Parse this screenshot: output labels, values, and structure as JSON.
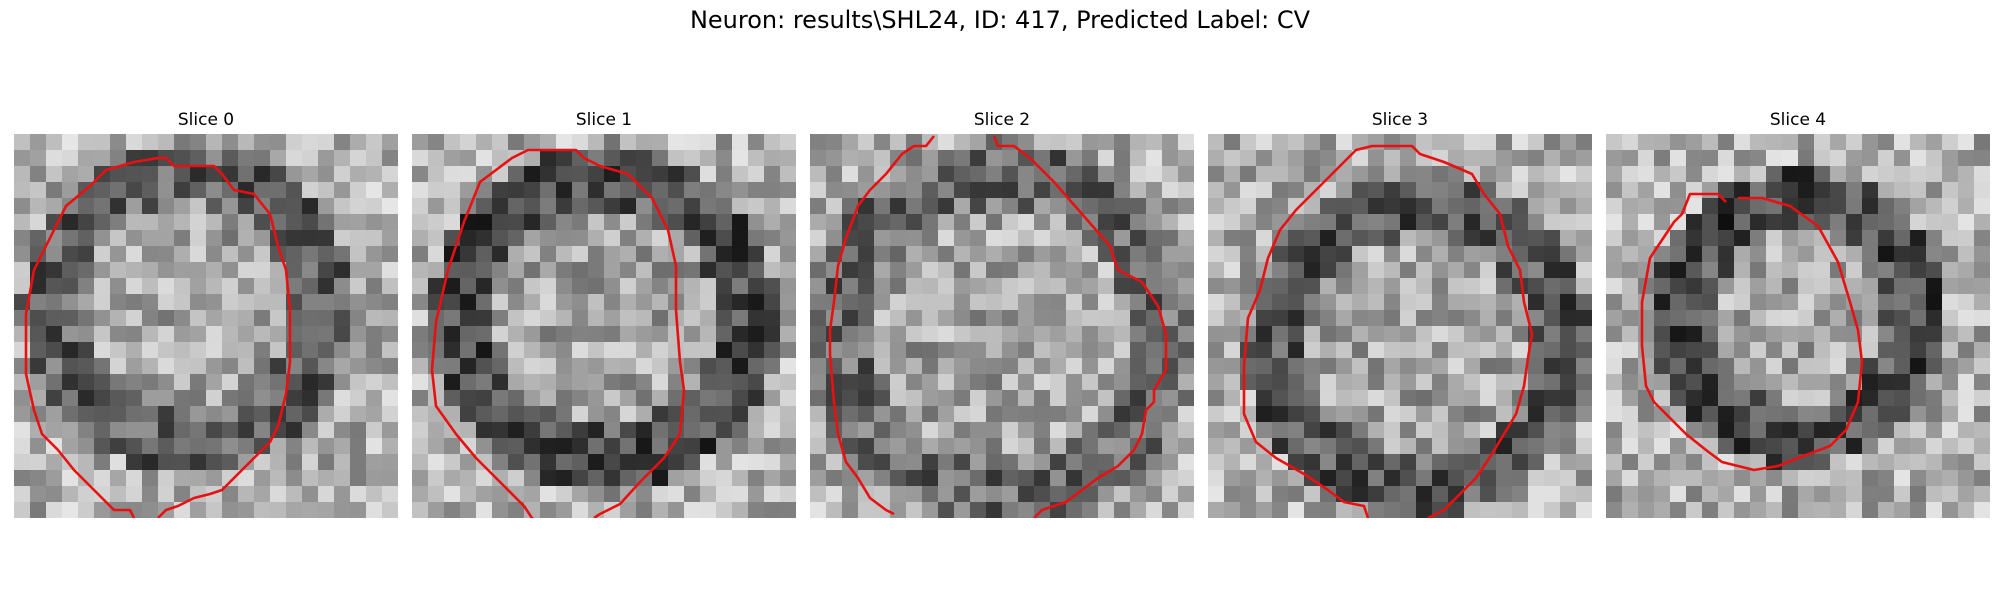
{
  "figure": {
    "title": "Neuron: results\\SHL24, ID: 417, Predicted Label: CV"
  },
  "panels": [
    {
      "title": "Slice 0"
    },
    {
      "title": "Slice 1"
    },
    {
      "title": "Slice 2"
    },
    {
      "title": "Slice 3"
    },
    {
      "title": "Slice 4"
    }
  ],
  "colors": {
    "contour": "#e81010",
    "background": "#ffffff"
  }
}
